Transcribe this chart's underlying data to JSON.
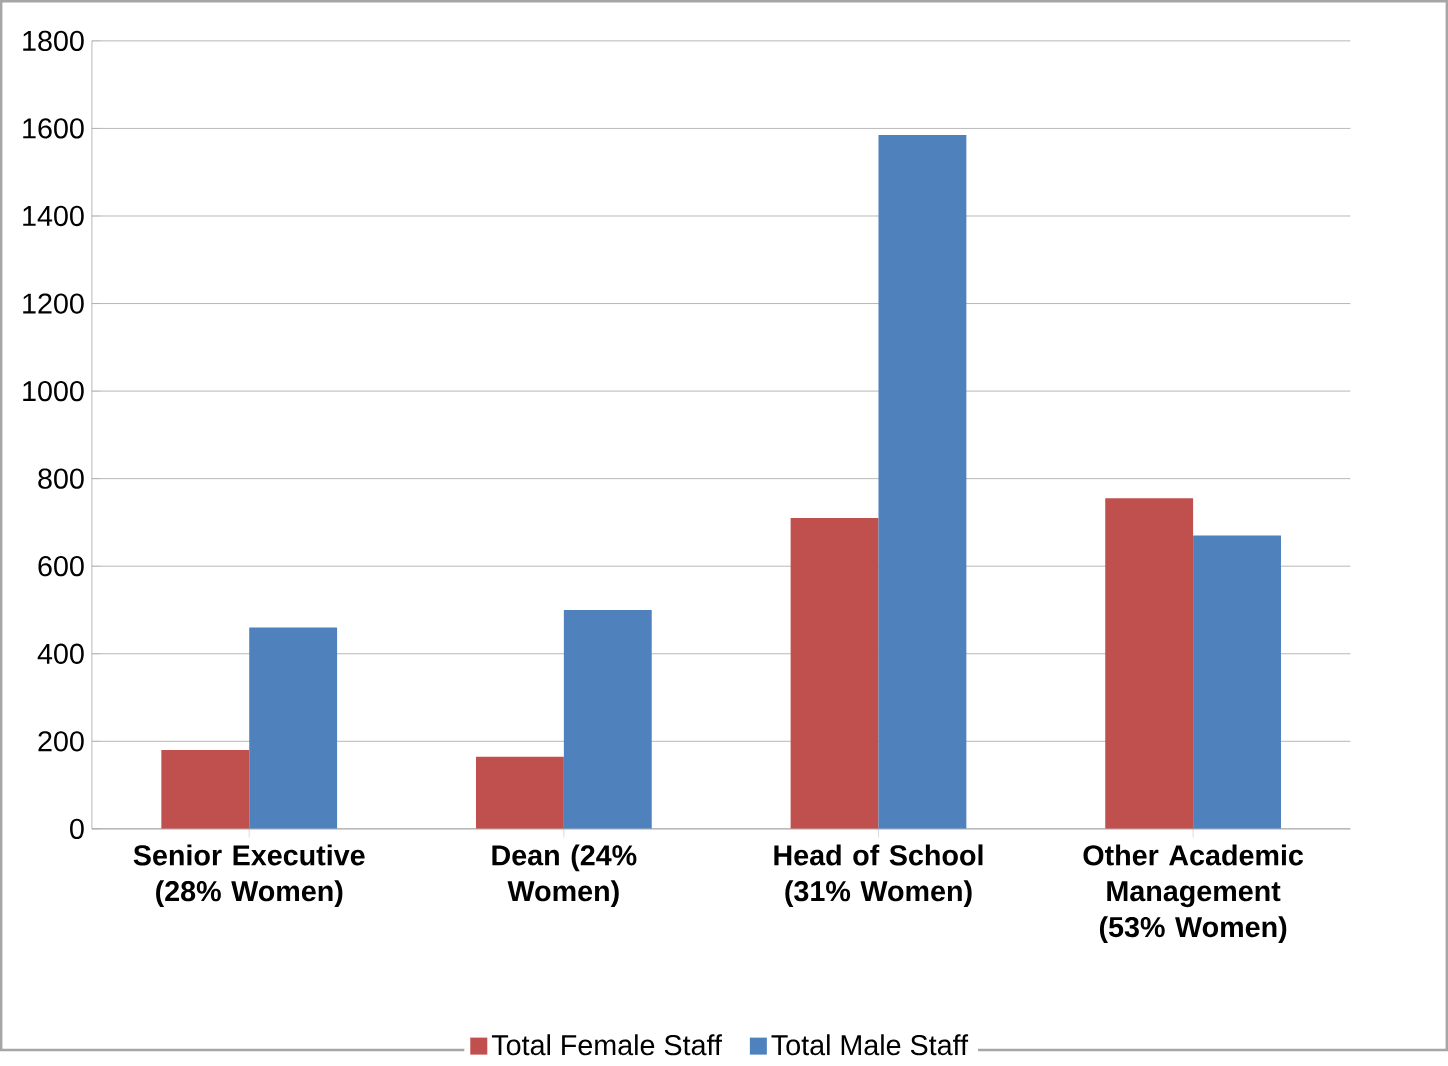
{
  "chart_data": {
    "type": "bar",
    "categories": [
      "Senior Executive (28% Women)",
      "Dean (24% Women)",
      "Head of School (31% Women)",
      "Other Academic Management (53% Women)"
    ],
    "series": [
      {
        "name": "Total Female Staff",
        "color": "#c0504d",
        "values": [
          180,
          165,
          710,
          755
        ]
      },
      {
        "name": "Total Male Staff",
        "color": "#4f81bd",
        "values": [
          460,
          500,
          1585,
          670
        ]
      }
    ],
    "ylim": [
      0,
      1800
    ],
    "yticks": [
      0,
      200,
      400,
      600,
      800,
      1000,
      1200,
      1400,
      1600,
      1800
    ],
    "grid": "y",
    "legend": "bottom"
  }
}
